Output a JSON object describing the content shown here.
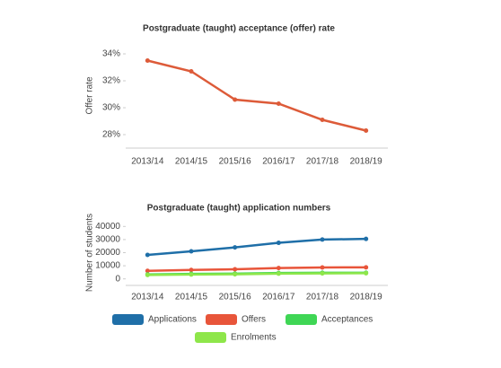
{
  "chart_data": [
    {
      "type": "line",
      "title": "Postgraduate (taught) acceptance (offer) rate",
      "y_label": "Offer rate",
      "categories": [
        "2013/14",
        "2014/15",
        "2015/16",
        "2016/17",
        "2017/18",
        "2018/19"
      ],
      "series": [
        {
          "name": "Offer rate",
          "color": "#dd5b39",
          "values": [
            33.5,
            32.7,
            30.6,
            30.3,
            29.1,
            28.3
          ]
        }
      ],
      "ylim": [
        27,
        34.8
      ],
      "yticks": [
        {
          "value": 28,
          "label": "28%"
        },
        {
          "value": 30,
          "label": "30%"
        },
        {
          "value": 32,
          "label": "32%"
        },
        {
          "value": 34,
          "label": "34%"
        }
      ],
      "legend": false
    },
    {
      "type": "line",
      "title": "Postgraduate (taught) application numbers",
      "y_label": "Number of students",
      "categories": [
        "2013/14",
        "2014/15",
        "2015/16",
        "2016/17",
        "2017/18",
        "2018/19"
      ],
      "series": [
        {
          "name": "Applications",
          "color": "#1f6fa8",
          "values": [
            18300,
            21000,
            24000,
            27500,
            30000,
            30500
          ]
        },
        {
          "name": "Offers",
          "color": "#e8553a",
          "values": [
            6100,
            6800,
            7300,
            8300,
            8700,
            8800
          ]
        },
        {
          "name": "Acceptances",
          "color": "#3fd655",
          "values": [
            3400,
            3800,
            4000,
            4500,
            4700,
            4700
          ]
        },
        {
          "name": "Enrolments",
          "color": "#8ee64a",
          "values": [
            3000,
            3300,
            3500,
            4000,
            4200,
            4300
          ]
        }
      ],
      "ylim": [
        -5000,
        45000
      ],
      "yticks": [
        0,
        10000,
        20000,
        30000,
        40000
      ],
      "legend": true
    }
  ]
}
